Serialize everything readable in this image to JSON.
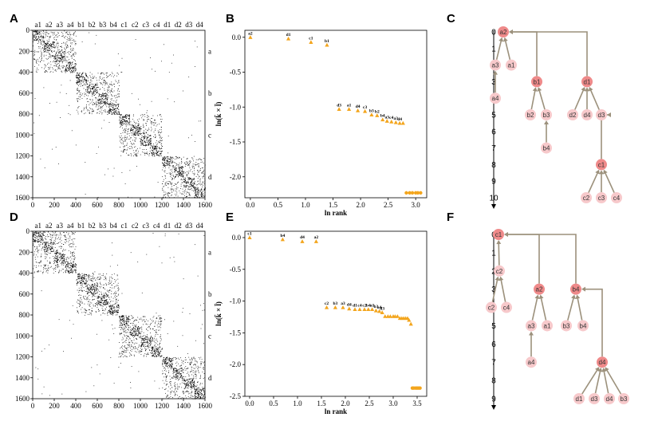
{
  "chart_data": [
    {
      "panel": "A",
      "type": "heatmap",
      "title": "",
      "xlim": [
        0,
        1600
      ],
      "ylim": [
        0,
        1600
      ],
      "xticks": [
        0,
        200,
        400,
        600,
        800,
        1000,
        1200,
        1400,
        1600
      ],
      "yticks": [
        0,
        200,
        400,
        600,
        800,
        1000,
        1200,
        1400,
        1600
      ],
      "top_labels": [
        "a1",
        "a2",
        "a3",
        "a4",
        "b1",
        "b2",
        "b3",
        "b4",
        "c1",
        "c2",
        "c3",
        "c4",
        "d1",
        "d2",
        "d3",
        "d4"
      ],
      "blocks": [
        {
          "label": "a",
          "start": 0,
          "end": 400
        },
        {
          "label": "b",
          "start": 400,
          "end": 800
        },
        {
          "label": "c",
          "start": 800,
          "end": 1200
        },
        {
          "label": "d",
          "start": 1200,
          "end": 1600
        }
      ],
      "seed": 11
    },
    {
      "panel": "B",
      "type": "scatter",
      "xlabel": "ln rank",
      "ylabel": "ln(k̄ × l̄)",
      "xlim": [
        -0.1,
        3.2
      ],
      "ylim": [
        -2.3,
        0.1
      ],
      "xticks": [
        0.0,
        0.5,
        1.0,
        1.5,
        2.0,
        2.5,
        3.0
      ],
      "yticks": [
        0.0,
        -0.5,
        -1.0,
        -1.5,
        -2.0
      ],
      "labeled_points": [
        {
          "x": 0.0,
          "y": 0.0,
          "label": "a2"
        },
        {
          "x": 0.69,
          "y": -0.02,
          "label": "d1"
        },
        {
          "x": 1.1,
          "y": -0.07,
          "label": "c1"
        },
        {
          "x": 1.39,
          "y": -0.11,
          "label": "b1"
        },
        {
          "x": 1.61,
          "y": -1.03,
          "label": "d3"
        },
        {
          "x": 1.79,
          "y": -1.03,
          "label": "a1"
        },
        {
          "x": 1.95,
          "y": -1.05,
          "label": "d4"
        },
        {
          "x": 2.08,
          "y": -1.06,
          "label": "c3"
        },
        {
          "x": 2.2,
          "y": -1.11,
          "label": "b3"
        },
        {
          "x": 2.3,
          "y": -1.12,
          "label": "b2"
        },
        {
          "x": 2.4,
          "y": -1.18,
          "label": "b4"
        },
        {
          "x": 2.48,
          "y": -1.2,
          "label": "a3"
        },
        {
          "x": 2.56,
          "y": -1.21,
          "label": "c4"
        },
        {
          "x": 2.64,
          "y": -1.22,
          "label": "a3"
        },
        {
          "x": 2.71,
          "y": -1.23,
          "label": "d4"
        }
      ],
      "plain_points": [
        {
          "x": 2.77,
          "y": -1.23
        }
      ],
      "tail_points": [
        {
          "x": 2.83,
          "y": -2.23
        },
        {
          "x": 2.89,
          "y": -2.23
        },
        {
          "x": 2.94,
          "y": -2.23
        },
        {
          "x": 3.0,
          "y": -2.23
        },
        {
          "x": 3.04,
          "y": -2.23
        },
        {
          "x": 3.09,
          "y": -2.23
        }
      ]
    },
    {
      "panel": "C",
      "type": "tree",
      "levels": [
        0,
        1,
        2,
        3,
        4,
        5,
        6,
        7,
        8,
        9,
        10
      ],
      "nodes": [
        {
          "id": "a2",
          "level": 0,
          "root": true
        },
        {
          "id": "a3",
          "level": 2,
          "parent": "a2"
        },
        {
          "id": "a1",
          "level": 2,
          "parent": "a2"
        },
        {
          "id": "a4",
          "level": 4,
          "parent": "a3"
        },
        {
          "id": "b1",
          "level": 3,
          "parent": "a2",
          "root": true
        },
        {
          "id": "b2",
          "level": 5,
          "parent": "b1"
        },
        {
          "id": "b3",
          "level": 5,
          "parent": "b1"
        },
        {
          "id": "b4",
          "level": 7,
          "parent": "b3"
        },
        {
          "id": "d1",
          "level": 3,
          "parent": "a2",
          "root": true
        },
        {
          "id": "d2",
          "level": 5,
          "parent": "d1"
        },
        {
          "id": "d4",
          "level": 5,
          "parent": "d1"
        },
        {
          "id": "d3",
          "level": 5,
          "parent": "d1"
        },
        {
          "id": "c1",
          "level": 8,
          "parent": "d3",
          "root": true
        },
        {
          "id": "c2",
          "level": 10,
          "parent": "c1"
        },
        {
          "id": "c3",
          "level": 10,
          "parent": "c1"
        },
        {
          "id": "c4",
          "level": 10,
          "parent": "c1"
        }
      ]
    },
    {
      "panel": "D",
      "type": "heatmap",
      "title": "",
      "xlim": [
        0,
        1600
      ],
      "ylim": [
        0,
        1600
      ],
      "xticks": [
        0,
        200,
        400,
        600,
        800,
        1000,
        1200,
        1400,
        1600
      ],
      "yticks": [
        0,
        200,
        400,
        600,
        800,
        1000,
        1200,
        1400,
        1600
      ],
      "top_labels": [
        "a1",
        "a2",
        "a3",
        "a4",
        "b1",
        "b2",
        "b3",
        "b4",
        "c1",
        "c2",
        "c3",
        "c4",
        "d1",
        "d2",
        "d3",
        "d4"
      ],
      "blocks": [
        {
          "label": "a",
          "start": 0,
          "end": 400
        },
        {
          "label": "b",
          "start": 400,
          "end": 800
        },
        {
          "label": "c",
          "start": 800,
          "end": 1200
        },
        {
          "label": "d",
          "start": 1200,
          "end": 1600
        }
      ],
      "seed": 29
    },
    {
      "panel": "E",
      "type": "scatter",
      "xlabel": "ln rank",
      "ylabel": "ln(k̄ × l̄)",
      "xlim": [
        -0.1,
        3.7
      ],
      "ylim": [
        -2.5,
        0.1
      ],
      "xticks": [
        0.0,
        0.5,
        1.0,
        1.5,
        2.0,
        2.5,
        3.0,
        3.5
      ],
      "yticks": [
        0.0,
        -0.5,
        -1.0,
        -1.5,
        -2.0,
        -2.5
      ],
      "labeled_points": [
        {
          "x": 0.0,
          "y": 0.0,
          "label": "c1"
        },
        {
          "x": 0.69,
          "y": -0.03,
          "label": "b4"
        },
        {
          "x": 1.1,
          "y": -0.06,
          "label": "d4"
        },
        {
          "x": 1.39,
          "y": -0.06,
          "label": "a2"
        },
        {
          "x": 1.61,
          "y": -1.1,
          "label": "c2"
        },
        {
          "x": 1.79,
          "y": -1.1,
          "label": "b3"
        },
        {
          "x": 1.95,
          "y": -1.1,
          "label": "a3"
        },
        {
          "x": 2.08,
          "y": -1.12,
          "label": "d4"
        },
        {
          "x": 2.2,
          "y": -1.13,
          "label": "d1"
        },
        {
          "x": 2.3,
          "y": -1.13,
          "label": "c4"
        },
        {
          "x": 2.4,
          "y": -1.13,
          "label": "c2"
        },
        {
          "x": 2.48,
          "y": -1.13,
          "label": "b4"
        },
        {
          "x": 2.56,
          "y": -1.13,
          "label": "a1"
        },
        {
          "x": 2.64,
          "y": -1.15,
          "label": "b3"
        },
        {
          "x": 2.71,
          "y": -1.16,
          "label": "a4"
        },
        {
          "x": 2.77,
          "y": -1.18,
          "label": "d3"
        }
      ],
      "plain_points": [
        {
          "x": 2.83,
          "y": -1.24
        },
        {
          "x": 2.89,
          "y": -1.24
        },
        {
          "x": 2.94,
          "y": -1.24
        },
        {
          "x": 3.0,
          "y": -1.24
        },
        {
          "x": 3.04,
          "y": -1.24
        },
        {
          "x": 3.09,
          "y": -1.24
        },
        {
          "x": 3.14,
          "y": -1.27
        },
        {
          "x": 3.18,
          "y": -1.27
        },
        {
          "x": 3.22,
          "y": -1.27
        },
        {
          "x": 3.26,
          "y": -1.27
        },
        {
          "x": 3.3,
          "y": -1.27
        },
        {
          "x": 3.33,
          "y": -1.3
        },
        {
          "x": 3.37,
          "y": -1.36
        }
      ],
      "tail_points": [
        {
          "x": 3.4,
          "y": -2.37
        },
        {
          "x": 3.43,
          "y": -2.37
        },
        {
          "x": 3.47,
          "y": -2.37
        },
        {
          "x": 3.5,
          "y": -2.37
        },
        {
          "x": 3.53,
          "y": -2.37
        },
        {
          "x": 3.56,
          "y": -2.37
        }
      ]
    },
    {
      "panel": "F",
      "type": "tree",
      "levels": [
        0,
        1,
        2,
        3,
        4,
        5,
        6,
        7,
        8,
        9
      ],
      "nodes": [
        {
          "id": "c1",
          "level": 0,
          "root": true
        },
        {
          "id": "c2",
          "level": 2,
          "parent": "c1"
        },
        {
          "id": "c2b",
          "text": "c2",
          "level": 4,
          "parent": "c2"
        },
        {
          "id": "c4",
          "level": 4,
          "parent": "c2"
        },
        {
          "id": "a2",
          "level": 3,
          "parent": "c1",
          "root": true
        },
        {
          "id": "a3",
          "level": 5,
          "parent": "a2"
        },
        {
          "id": "a1",
          "level": 5,
          "parent": "a2"
        },
        {
          "id": "a4",
          "level": 7,
          "parent": "a3"
        },
        {
          "id": "b4",
          "level": 3,
          "parent": "c1",
          "root": true
        },
        {
          "id": "b3",
          "level": 5,
          "parent": "b4"
        },
        {
          "id": "b4b",
          "text": "b4",
          "level": 5,
          "parent": "b4"
        },
        {
          "id": "d4",
          "level": 7,
          "parent": "b4",
          "root": true
        },
        {
          "id": "d1",
          "level": 9,
          "parent": "d4"
        },
        {
          "id": "d3",
          "level": 9,
          "parent": "d4"
        },
        {
          "id": "d4b",
          "text": "d4",
          "level": 9,
          "parent": "d4"
        },
        {
          "id": "b3b",
          "text": "b3",
          "level": 9,
          "parent": "d4"
        }
      ]
    }
  ],
  "colors": {
    "marker": "#f3a51c",
    "root_node": "#ef8a8a",
    "leaf_node": "#f7c9cb",
    "edge": "#9c917c",
    "dot": "#000000"
  }
}
